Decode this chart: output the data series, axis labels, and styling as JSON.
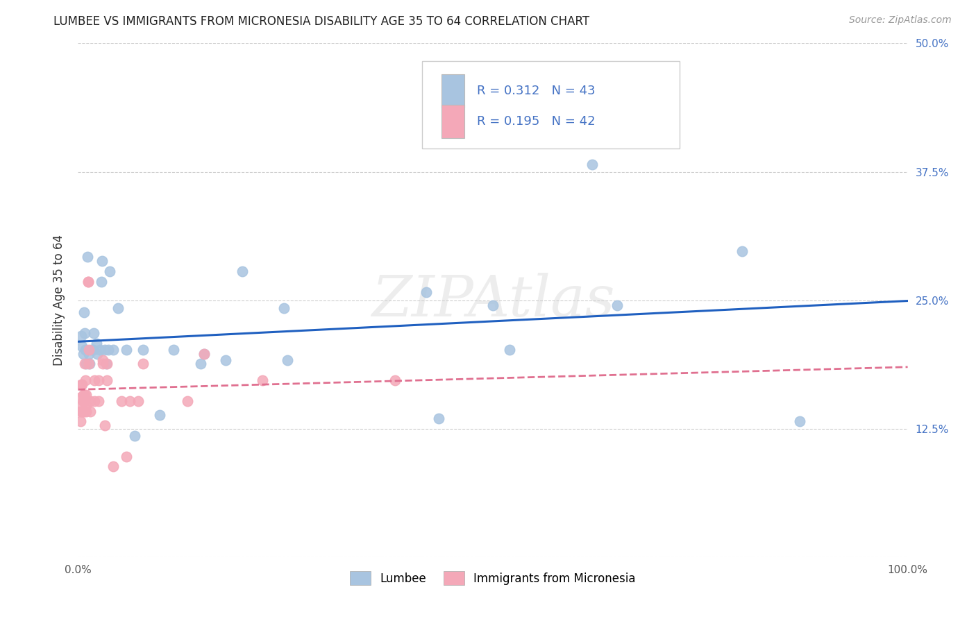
{
  "title": "LUMBEE VS IMMIGRANTS FROM MICRONESIA DISABILITY AGE 35 TO 64 CORRELATION CHART",
  "source": "Source: ZipAtlas.com",
  "ylabel": "Disability Age 35 to 64",
  "xlim": [
    0,
    1.0
  ],
  "ylim": [
    0,
    0.5
  ],
  "xticks": [
    0.0,
    0.25,
    0.5,
    0.75,
    1.0
  ],
  "xticklabels": [
    "0.0%",
    "",
    "",
    "",
    "100.0%"
  ],
  "yticks": [
    0.0,
    0.125,
    0.25,
    0.375,
    0.5
  ],
  "yticklabels_right": [
    "",
    "12.5%",
    "25.0%",
    "37.5%",
    "50.0%"
  ],
  "legend_labels": [
    "Lumbee",
    "Immigrants from Micronesia"
  ],
  "lumbee_R": "0.312",
  "lumbee_N": "43",
  "micro_R": "0.195",
  "micro_N": "42",
  "lumbee_color": "#a8c4e0",
  "micro_color": "#f4a8b8",
  "lumbee_line_color": "#2060c0",
  "micro_line_color": "#e07090",
  "watermark": "ZIPAtlas",
  "lumbee_x": [
    0.004,
    0.005,
    0.006,
    0.007,
    0.008,
    0.009,
    0.01,
    0.011,
    0.013,
    0.014,
    0.016,
    0.018,
    0.019,
    0.022,
    0.023,
    0.026,
    0.028,
    0.029,
    0.032,
    0.034,
    0.036,
    0.038,
    0.042,
    0.048,
    0.058,
    0.068,
    0.078,
    0.098,
    0.115,
    0.148,
    0.152,
    0.178,
    0.198,
    0.248,
    0.252,
    0.42,
    0.435,
    0.5,
    0.52,
    0.62,
    0.65,
    0.8,
    0.87
  ],
  "lumbee_y": [
    0.215,
    0.205,
    0.198,
    0.238,
    0.218,
    0.202,
    0.188,
    0.292,
    0.198,
    0.188,
    0.202,
    0.202,
    0.218,
    0.208,
    0.198,
    0.202,
    0.268,
    0.288,
    0.202,
    0.188,
    0.202,
    0.278,
    0.202,
    0.242,
    0.202,
    0.118,
    0.202,
    0.138,
    0.202,
    0.188,
    0.198,
    0.192,
    0.278,
    0.242,
    0.192,
    0.258,
    0.135,
    0.245,
    0.202,
    0.382,
    0.245,
    0.298,
    0.132
  ],
  "micro_x": [
    0.002,
    0.003,
    0.003,
    0.004,
    0.005,
    0.005,
    0.005,
    0.006,
    0.006,
    0.007,
    0.007,
    0.008,
    0.008,
    0.009,
    0.01,
    0.01,
    0.01,
    0.012,
    0.012,
    0.013,
    0.013,
    0.015,
    0.015,
    0.02,
    0.02,
    0.025,
    0.025,
    0.03,
    0.03,
    0.032,
    0.035,
    0.035,
    0.042,
    0.052,
    0.058,
    0.062,
    0.072,
    0.078,
    0.132,
    0.152,
    0.222,
    0.382
  ],
  "micro_y": [
    0.155,
    0.142,
    0.132,
    0.168,
    0.142,
    0.148,
    0.168,
    0.152,
    0.158,
    0.152,
    0.142,
    0.158,
    0.188,
    0.172,
    0.142,
    0.148,
    0.158,
    0.268,
    0.268,
    0.188,
    0.202,
    0.142,
    0.152,
    0.172,
    0.152,
    0.152,
    0.172,
    0.188,
    0.192,
    0.128,
    0.172,
    0.188,
    0.088,
    0.152,
    0.098,
    0.152,
    0.152,
    0.188,
    0.152,
    0.198,
    0.172,
    0.172
  ]
}
